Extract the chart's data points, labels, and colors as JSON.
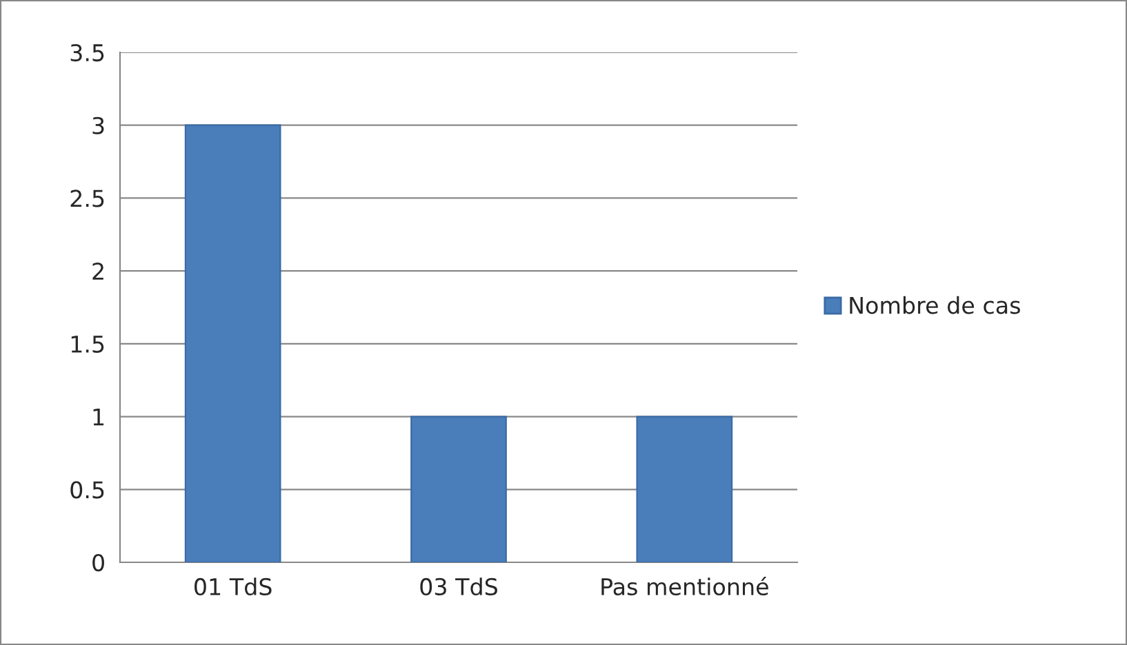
{
  "chart_data": {
    "type": "bar",
    "categories": [
      "01 TdS",
      "03 TdS",
      "Pas mentionné"
    ],
    "series": [
      {
        "name": "Nombre de cas",
        "color": "#4a7ebb",
        "values": [
          3,
          1,
          1
        ]
      }
    ],
    "ylim": [
      0,
      3.5
    ],
    "yticks": [
      0,
      0.5,
      1,
      1.5,
      2,
      2.5,
      3,
      3.5
    ],
    "grid": "y",
    "legend": "right"
  }
}
